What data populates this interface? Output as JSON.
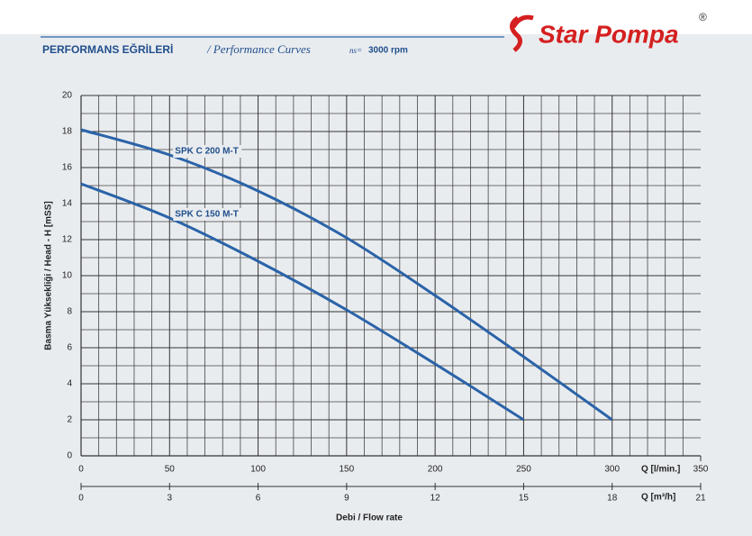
{
  "logo": {
    "text": "Star Pompa",
    "mark": "®"
  },
  "chart_data": {
    "type": "line",
    "title": "PERFORMANS EĞRİLERİ",
    "subtitle": "/ Performance Curves",
    "speed_label": "ns=",
    "speed": "3000 rpm",
    "ylabel": "Basma Yüksekliği / Head - H [mSS]",
    "xtitle": "Debi / Flow rate",
    "xlabel": "Q [l/min.]",
    "x2label": "Q [m³/h]",
    "x": [
      0,
      50,
      100,
      150,
      200,
      250,
      300
    ],
    "series": [
      {
        "name": "SPK C 200 M-T",
        "color": "#2a63a8",
        "values": [
          18.1,
          16.7,
          14.7,
          12.1,
          8.9,
          5.5,
          2.0
        ]
      },
      {
        "name": "SPK C 150 M-T",
        "color": "#2a63a8",
        "values": [
          15.1,
          13.2,
          10.8,
          8.1,
          5.1,
          2.0,
          null
        ]
      }
    ],
    "xlim": [
      0,
      350
    ],
    "xticks": [
      0,
      50,
      100,
      150,
      200,
      250,
      300,
      350
    ],
    "x2lim": [
      0,
      21
    ],
    "x2ticks": [
      0,
      3,
      6,
      9,
      12,
      15,
      18,
      21
    ],
    "ylim": [
      0,
      20
    ],
    "yticks": [
      0,
      2,
      4,
      6,
      8,
      10,
      12,
      14,
      16,
      18,
      20
    ],
    "grid": true
  }
}
